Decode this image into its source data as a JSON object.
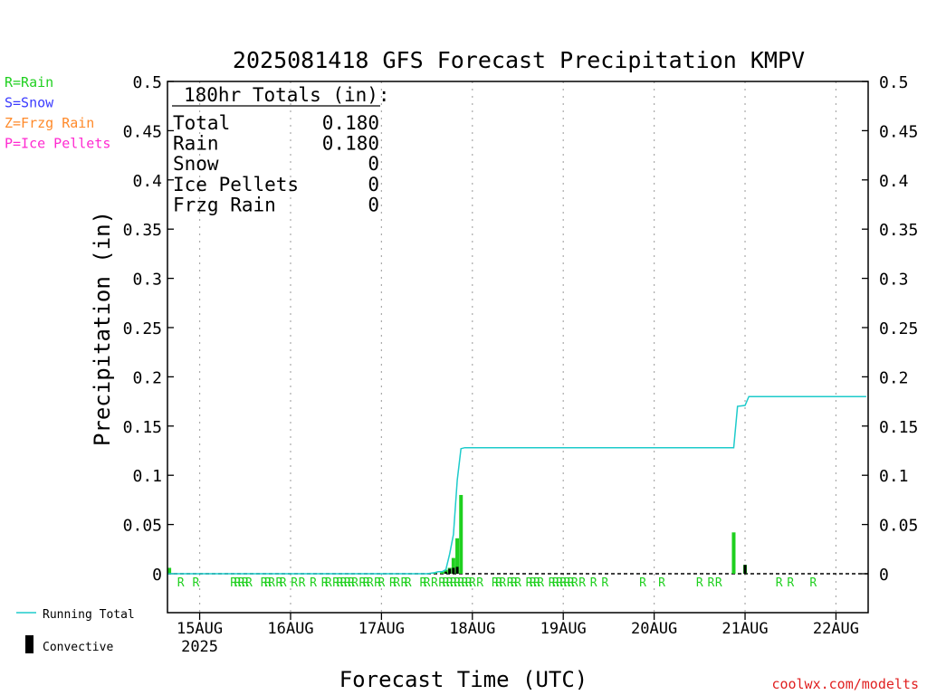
{
  "chart_data": {
    "type": "bar",
    "title": "2025081418 GFS Forecast Precipitation KMPV",
    "xlabel": "Forecast Time (UTC)",
    "ylabel": "Precipitation (in)",
    "ylim": [
      0,
      0.5
    ],
    "yticks": [
      "0",
      "0.05",
      "0.1",
      "0.15",
      "0.2",
      "0.25",
      "0.3",
      "0.35",
      "0.4",
      "0.45",
      "0.5"
    ],
    "xlim_hours": [
      -2.5,
      182.5
    ],
    "x_ticks": [
      {
        "label": "15AUG",
        "hour": 6,
        "sub": "2025"
      },
      {
        "label": "16AUG",
        "hour": 30,
        "sub": ""
      },
      {
        "label": "17AUG",
        "hour": 54,
        "sub": ""
      },
      {
        "label": "18AUG",
        "hour": 78,
        "sub": ""
      },
      {
        "label": "19AUG",
        "hour": 102,
        "sub": ""
      },
      {
        "label": "20AUG",
        "hour": 126,
        "sub": ""
      },
      {
        "label": "21AUG",
        "hour": 150,
        "sub": ""
      },
      {
        "label": "22AUG",
        "hour": 174,
        "sub": ""
      }
    ],
    "legend_top": [
      {
        "label": "R=Rain",
        "color": "#1fd01f"
      },
      {
        "label": "S=Snow",
        "color": "#3b3bff"
      },
      {
        "label": "Z=Frzg Rain",
        "color": "#ff8a2a"
      },
      {
        "label": "P=Ice Pellets",
        "color": "#ff2ad0"
      }
    ],
    "legend_bottom": [
      {
        "label": "Running Total",
        "kind": "line",
        "color": "#1ecbcb"
      },
      {
        "label": "Convective",
        "kind": "bar",
        "color": "#000000"
      }
    ],
    "totals_box": {
      "header": "180hr Totals (in):",
      "rows": [
        {
          "label": "Total",
          "value": "0.180"
        },
        {
          "label": "Rain",
          "value": "0.180"
        },
        {
          "label": "Snow",
          "value": "0"
        },
        {
          "label": "Ice Pellets",
          "value": "0"
        },
        {
          "label": "Frzg Rain",
          "value": "0"
        }
      ]
    },
    "series": [
      {
        "name": "Running Total",
        "color": "#1ecbcb",
        "x_hours": [
          -3,
          66,
          68,
          69,
          70,
          71,
          72,
          73,
          74,
          75,
          76,
          77,
          78,
          147,
          148,
          150,
          151,
          182
        ],
        "values": [
          0,
          0,
          0.001,
          0.002,
          0.002,
          0.004,
          0.02,
          0.04,
          0.095,
          0.127,
          0.128,
          0.128,
          0.128,
          0.128,
          0.17,
          0.171,
          0.18,
          0.18
        ]
      }
    ],
    "bars_total": {
      "color": "#1fd01f",
      "x_hours": [
        -2,
        68,
        70,
        71,
        72,
        73,
        74,
        75,
        147,
        150
      ],
      "values": [
        0.006,
        0.001,
        0.002,
        0.004,
        0.006,
        0.016,
        0.036,
        0.08,
        0.042,
        0.009
      ]
    },
    "bars_convective": {
      "color": "#000000",
      "x_hours": [
        71,
        72,
        73,
        74,
        150
      ],
      "values": [
        0.002,
        0.005,
        0.006,
        0.007,
        0.009
      ]
    },
    "ptype_markers": {
      "color": "#1fd01f",
      "symbol": "R",
      "x_hours": [
        1,
        5,
        15,
        16,
        17,
        18,
        19,
        23,
        24,
        25,
        27,
        28,
        31,
        33,
        36,
        39,
        40,
        42,
        43,
        44,
        45,
        46,
        47,
        49,
        50,
        51,
        53,
        54,
        57,
        58,
        60,
        61,
        65,
        66,
        68,
        70,
        71,
        72,
        73,
        74,
        75,
        76,
        77,
        78,
        80,
        84,
        85,
        86,
        88,
        89,
        90,
        93,
        94,
        95,
        96,
        99,
        100,
        101,
        102,
        103,
        104,
        105,
        107,
        110,
        113,
        123,
        128,
        138,
        141,
        143,
        159,
        162,
        168
      ]
    },
    "footer_credit": "coolwx.com/modelts"
  }
}
